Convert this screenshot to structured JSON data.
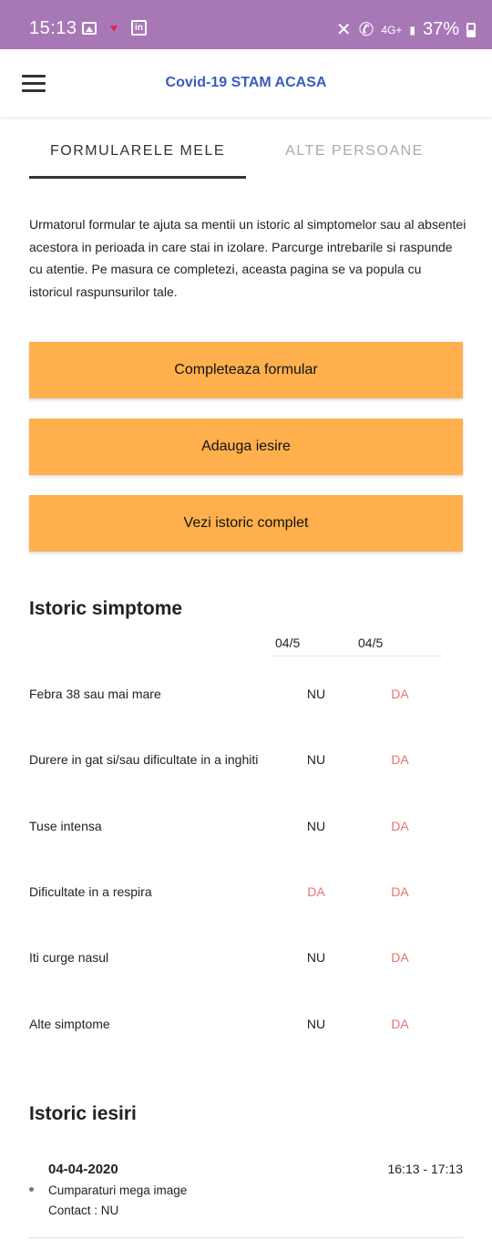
{
  "status_bar": {
    "time": "15:13",
    "network": "4G+",
    "battery": "37%"
  },
  "app_bar": {
    "title": "Covid-19 STAM ACASA"
  },
  "tabs": [
    {
      "label": "FORMULARELE MELE",
      "active": true
    },
    {
      "label": "ALTE PERSOANE",
      "active": false
    }
  ],
  "intro_text": "Urmatorul formular te ajuta sa mentii un istoric al simptomelor sau al absentei acestora in perioada in care stai in izolare. Parcurge intrebarile si raspunde cu atentie. Pe masura ce completezi, aceasta pagina se va popula cu istoricul raspunsurilor tale.",
  "buttons": {
    "fill_form": "Completeaza formular",
    "add_exit": "Adauga iesire",
    "view_history": "Vezi istoric complet"
  },
  "colors": {
    "status_bar": "#a878b6",
    "accent_button": "#ffb04c",
    "title_blue": "#3b5bbf",
    "yes_red": "#e57373"
  },
  "symptoms": {
    "title": "Istoric simptome",
    "dates": [
      "04/5",
      "04/5"
    ],
    "rows": [
      {
        "label": "Febra 38 sau mai mare",
        "v1": "NU",
        "v2": "DA"
      },
      {
        "label": "Durere in gat si/sau dificultate in a inghiti",
        "v1": "NU",
        "v2": "DA"
      },
      {
        "label": "Tuse intensa",
        "v1": "NU",
        "v2": "DA"
      },
      {
        "label": "Dificultate in a respira",
        "v1": "DA",
        "v2": "DA"
      },
      {
        "label": "Iti curge nasul",
        "v1": "NU",
        "v2": "DA"
      },
      {
        "label": "Alte simptome",
        "v1": "NU",
        "v2": "DA"
      }
    ]
  },
  "exits": {
    "title": "Istoric iesiri",
    "items": [
      {
        "date": "04-04-2020",
        "time": "16:13 - 17:13",
        "description": "Cumparaturi mega image",
        "contact": "Contact :  NU"
      }
    ]
  }
}
